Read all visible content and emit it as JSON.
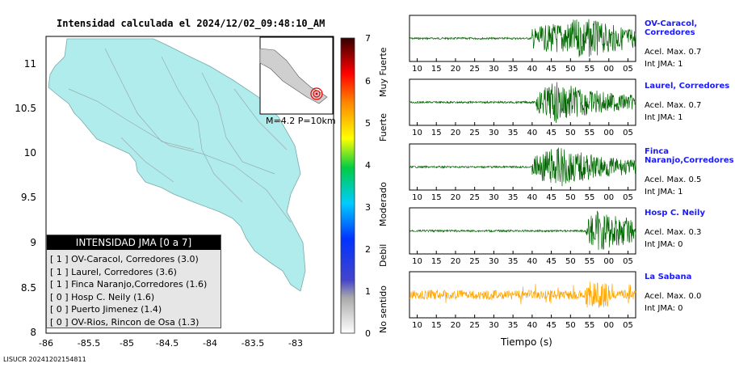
{
  "map": {
    "title": "Intensidad calculada el 2024/12/02_09:48:10_AM",
    "inset_label": "M=4.2 P=10km",
    "x_ticks": [
      "-86",
      "-85.5",
      "-85",
      "-84.5",
      "-84",
      "-83.5",
      "-83"
    ],
    "y_ticks": [
      "11",
      "10.5",
      "10",
      "9.5",
      "9",
      "8.5",
      "8"
    ],
    "footer_id": "LISUCR 20241202154811"
  },
  "legend": {
    "title": "INTENSIDAD JMA [0 a 7]",
    "items": [
      "[ 1 ]  OV-Caracol, Corredores (3.0)",
      "[ 1 ]  Laurel, Corredores (3.6)",
      "[ 1 ]  Finca Naranjo,Corredores (1.6)",
      "[ 0 ]  Hosp C. Neily (1.6)",
      "[ 0 ]  Puerto Jimenez (1.4)",
      "[ 0 ]  OV-Rios, Rincon de Osa (1.3)"
    ]
  },
  "colorbar": {
    "ticks": [
      "7",
      "6",
      "5",
      "4",
      "3",
      "2",
      "1",
      "0"
    ],
    "labels": [
      "Muy Fuerte",
      "Fuerte",
      "Moderado",
      "Debil",
      "No sentido"
    ]
  },
  "colors": {
    "land": "#b0ecec",
    "trace_green": "#006400",
    "trace_orange": "#ffa500",
    "station_name": "#1a1aff"
  },
  "stations": [
    {
      "name": "OV-Caracol, Corredores",
      "acel": "Acel. Max. 0.7",
      "int": "Int JMA: 1"
    },
    {
      "name": "Laurel, Corredores",
      "acel": "Acel. Max. 0.7",
      "int": "Int JMA: 1"
    },
    {
      "name": "Finca Naranjo,Corredores",
      "acel": "Acel. Max. 0.5",
      "int": "Int JMA: 1"
    },
    {
      "name": "Hosp C. Neily",
      "acel": "Acel. Max. 0.3",
      "int": "Int JMA: 0"
    },
    {
      "name": "La Sabana",
      "acel": "Acel. Max. 0.0",
      "int": "Int JMA: 0"
    }
  ],
  "traces": {
    "xlabel": "Tiempo (s)",
    "tick_labels": [
      "10",
      "15",
      "20",
      "25",
      "30",
      "35",
      "40",
      "45",
      "50",
      "55",
      "00",
      "05"
    ]
  },
  "chart_data": {
    "type": "line",
    "xlabel": "Tiempo (s)",
    "x_ticks": [
      "10",
      "15",
      "20",
      "25",
      "30",
      "35",
      "40",
      "45",
      "50",
      "55",
      "00",
      "05"
    ],
    "series": [
      {
        "name": "OV-Caracol, Corredores",
        "onset_s": 40,
        "peak_s": 53,
        "max_accel": 0.7,
        "int_jma": 1
      },
      {
        "name": "Laurel, Corredores",
        "onset_s": 41,
        "peak_s": 46,
        "max_accel": 0.7,
        "int_jma": 1
      },
      {
        "name": "Finca Naranjo,Corredores",
        "onset_s": 40,
        "peak_s": 46,
        "max_accel": 0.5,
        "int_jma": 1
      },
      {
        "name": "Hosp C. Neily",
        "onset_s": 54,
        "peak_s": 57,
        "max_accel": 0.3,
        "int_jma": 0
      },
      {
        "name": "La Sabana",
        "onset_s": 10,
        "peak_s": 57,
        "max_accel": 0.0,
        "int_jma": 0
      }
    ]
  }
}
